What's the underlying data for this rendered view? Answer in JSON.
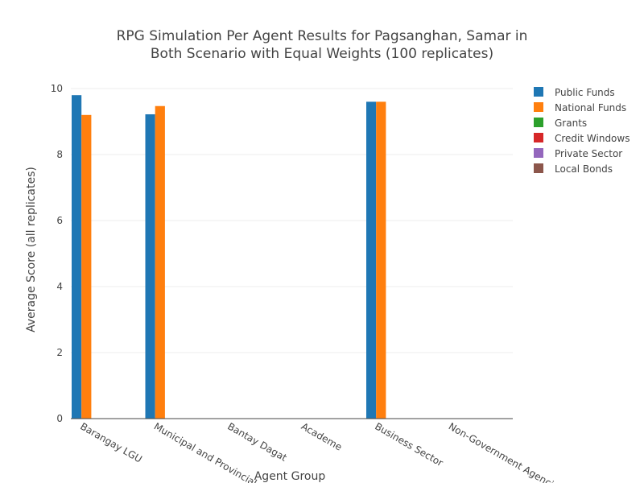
{
  "chart_data": {
    "type": "bar",
    "title": {
      "line1": "RPG Simulation Per Agent Results for Pagsanghan, Samar in",
      "line2": "Both Scenario with Equal Weights (100 replicates)"
    },
    "xlabel": "Agent Group",
    "ylabel": "Average Score (all replicates)",
    "ylim": [
      0,
      10
    ],
    "yticks": [
      0,
      2,
      4,
      6,
      8,
      10
    ],
    "grid": true,
    "legend_position": "top-right",
    "categories": [
      "Barangay LGU",
      "Municipal and Provincial",
      "Bantay Dagat",
      "Academe",
      "Business Sector",
      "Non-Government Agencies"
    ],
    "series": [
      {
        "name": "Public Funds",
        "color": "#1f77b4",
        "values": [
          9.8,
          9.22,
          0,
          0,
          9.6,
          0
        ]
      },
      {
        "name": "National Funds",
        "color": "#ff7f0e",
        "values": [
          9.2,
          9.47,
          0,
          0,
          9.6,
          0
        ]
      },
      {
        "name": "Grants",
        "color": "#2ca02c",
        "values": [
          0,
          0,
          0,
          0,
          0,
          0
        ]
      },
      {
        "name": "Credit Windows",
        "color": "#d62728",
        "values": [
          0,
          0,
          0,
          0,
          0,
          0
        ]
      },
      {
        "name": "Private Sector",
        "color": "#9467bd",
        "values": [
          0,
          0,
          0,
          0,
          0,
          0
        ]
      },
      {
        "name": "Local Bonds",
        "color": "#8c564b",
        "values": [
          0,
          0,
          0,
          0,
          0,
          0
        ]
      }
    ]
  }
}
